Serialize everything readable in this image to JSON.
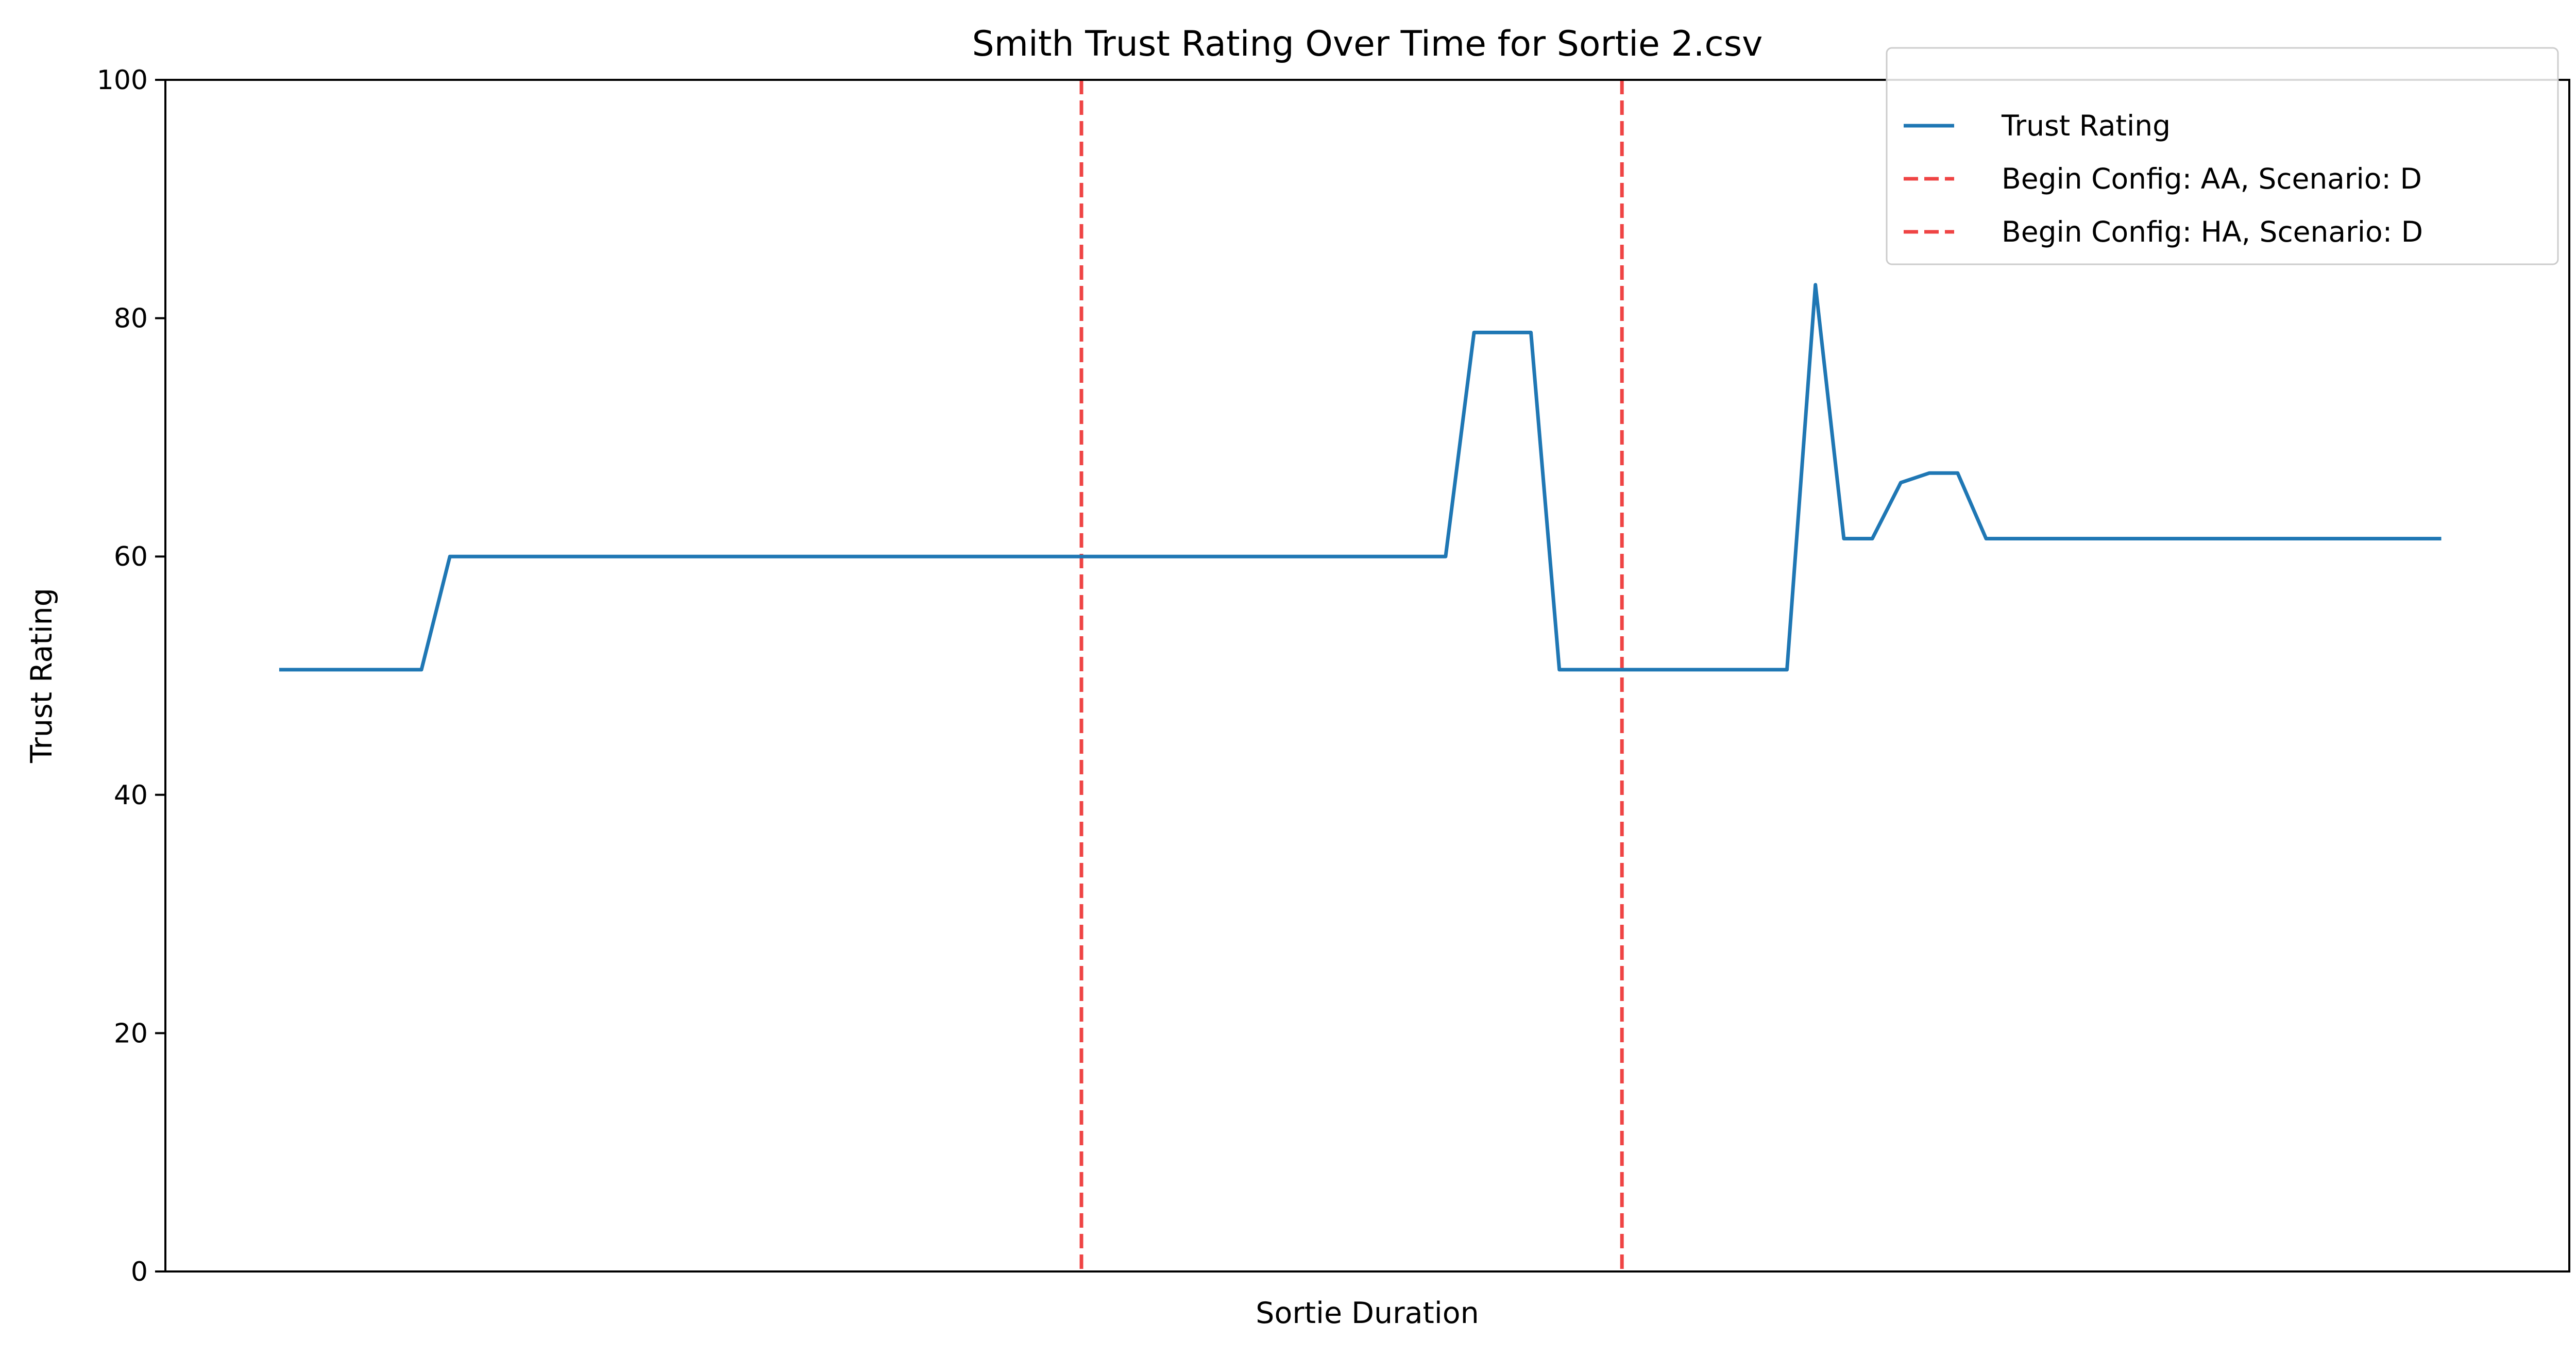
{
  "chart_data": {
    "type": "line",
    "title": "Smith Trust Rating Over Time for Sortie 2.csv",
    "xlabel": "Sortie Duration",
    "ylabel": "Trust Rating",
    "ylim": [
      0,
      100
    ],
    "xlim": [
      -4,
      80.5
    ],
    "y_ticks": [
      0,
      20,
      40,
      60,
      80,
      100
    ],
    "x_ticks_shown": false,
    "grid": false,
    "legend_position": "top-right",
    "series": [
      {
        "name": "Trust Rating",
        "color": "#1f77b4",
        "style": "solid",
        "x": [
          0,
          1,
          2,
          3,
          4,
          5,
          6,
          7,
          8,
          9,
          10,
          11,
          12,
          13,
          14,
          15,
          16,
          17,
          18,
          19,
          20,
          21,
          22,
          23,
          24,
          25,
          26,
          27,
          28,
          29,
          30,
          31,
          32,
          33,
          34,
          35,
          36,
          37,
          38,
          39,
          40,
          41,
          42,
          43,
          44,
          45,
          46,
          47,
          48,
          49,
          50,
          51,
          52,
          53,
          54,
          55,
          56,
          57,
          58,
          59,
          60,
          61,
          62,
          63,
          64,
          65,
          66,
          67,
          68,
          69,
          70,
          71,
          72,
          73,
          74,
          75,
          76
        ],
        "values": [
          50.5,
          50.5,
          50.5,
          50.5,
          50.5,
          50.5,
          60,
          60,
          60,
          60,
          60,
          60,
          60,
          60,
          60,
          60,
          60,
          60,
          60,
          60,
          60,
          60,
          60,
          60,
          60,
          60,
          60,
          60,
          60,
          60,
          60,
          60,
          60,
          60,
          60,
          60,
          60,
          60,
          60,
          60,
          60,
          60,
          78.8,
          78.8,
          78.8,
          50.5,
          50.5,
          50.5,
          50.5,
          50.5,
          50.5,
          50.5,
          50.5,
          50.5,
          82.8,
          61.5,
          61.5,
          66.2,
          67,
          67,
          61.5,
          61.5,
          61.5,
          61.5,
          61.5,
          61.5,
          61.5,
          61.5,
          61.5,
          61.5,
          61.5,
          61.5,
          61.5,
          61.5,
          61.5,
          61.5,
          61.5
        ]
      }
    ],
    "vertical_markers": [
      {
        "name": "Begin Config: AA, Scenario: D",
        "x": 28.2,
        "color": "#ef4444",
        "style": "dashed"
      },
      {
        "name": "Begin Config: HA, Scenario: D",
        "x": 47.2,
        "color": "#ef4444",
        "style": "dashed"
      }
    ],
    "legend": [
      {
        "label": "Trust Rating",
        "color": "#1f77b4",
        "style": "solid"
      },
      {
        "label": "Begin Config: AA, Scenario: D",
        "color": "#ef4444",
        "style": "dashed"
      },
      {
        "label": "Begin Config: HA, Scenario: D",
        "color": "#ef4444",
        "style": "dashed"
      }
    ]
  }
}
